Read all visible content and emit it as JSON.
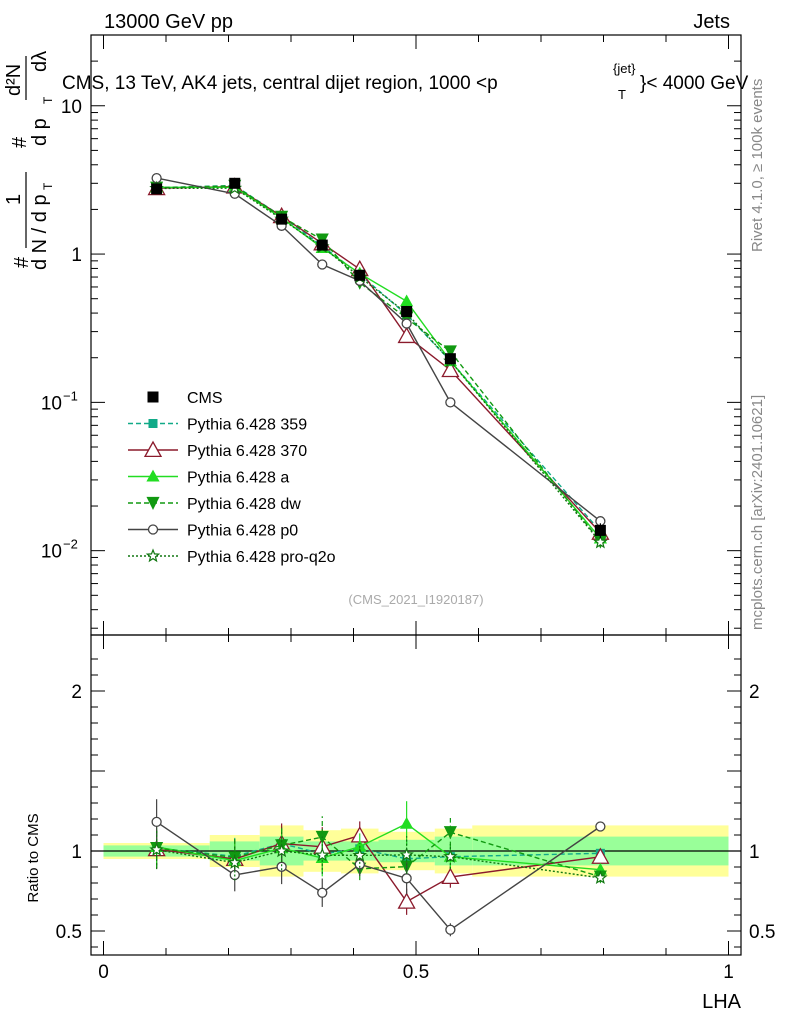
{
  "header": {
    "left_title": "13000 GeV pp",
    "right_title": "Jets",
    "plot_title_prefix": "CMS, 13 TeV, AK4 jets, central dijet region, 1000 <p",
    "plot_title_sup": "{jet}",
    "plot_title_sub": "T",
    "plot_title_suffix": "}< 4000 GeV",
    "rivet_label": "Rivet 4.1.0, ≥ 100k events",
    "mcplots_label": "mcplots.cern.ch [arXiv:2401.10621]",
    "analysis_id": "(CMS_2021_I1920187)"
  },
  "axes": {
    "xlabel": "LHA",
    "ratio_ylabel": "Ratio to CMS",
    "ylabel_parts": [
      "#",
      "1",
      "d N / d p",
      "T",
      "#",
      "d p",
      "T",
      "d²N",
      "dλ"
    ],
    "main_yticks": [
      {
        "value": 10,
        "base": "10"
      },
      {
        "value": 1,
        "base": "1"
      },
      {
        "value": 0.1,
        "base": "10",
        "exp": "−1"
      },
      {
        "value": 0.01,
        "base": "10",
        "exp": "−2"
      }
    ],
    "ratio_yticks": [
      {
        "value": 2,
        "label": "2"
      },
      {
        "value": 1,
        "label": "1"
      },
      {
        "value": 0.5,
        "label": "0.5"
      }
    ],
    "xticks": [
      {
        "value": 0,
        "label": "0"
      },
      {
        "value": 0.5,
        "label": "0.5"
      },
      {
        "value": 1,
        "label": "1"
      }
    ]
  },
  "chart_data": {
    "type": "line",
    "title": "CMS, 13 TeV, AK4 jets, central dijet region, 1000 < pT < 4000 GeV",
    "xlabel": "LHA",
    "ylabel": "1/(dN/dpT) d2N/(dpT dlambda)",
    "yscale": "log",
    "xlim": [
      -0.02,
      1.02
    ],
    "ylim": [
      0.0027,
      30
    ],
    "ratio_ylim": [
      0.35,
      2.35
    ],
    "x": [
      0.085,
      0.21,
      0.285,
      0.35,
      0.41,
      0.485,
      0.555,
      0.795
    ],
    "bins": [
      [
        0,
        0.17
      ],
      [
        0.17,
        0.25
      ],
      [
        0.25,
        0.32
      ],
      [
        0.32,
        0.38
      ],
      [
        0.38,
        0.44
      ],
      [
        0.44,
        0.53
      ],
      [
        0.53,
        0.59
      ],
      [
        0.59,
        1.0
      ]
    ],
    "data": {
      "name": "CMS",
      "values": [
        2.75,
        3.0,
        1.72,
        1.15,
        0.72,
        0.41,
        0.197,
        0.0137
      ],
      "errors": [
        0.09,
        0.1,
        0.07,
        0.05,
        0.04,
        0.025,
        0.015,
        0.0016
      ],
      "band_inner": [
        0.035,
        0.06,
        0.09,
        0.06,
        0.06,
        0.07,
        0.09,
        0.09
      ],
      "band_outer": [
        0.05,
        0.1,
        0.16,
        0.13,
        0.14,
        0.12,
        0.14,
        0.16
      ]
    },
    "series": [
      {
        "name": "Pythia 6.428 359",
        "color": "#11aa88",
        "dash": "5,3",
        "marker": "square",
        "values": [
          2.8,
          2.9,
          1.8,
          1.13,
          0.73,
          0.39,
          0.19,
          0.0135
        ],
        "errors": [
          0.03,
          0.03,
          0.03,
          0.03,
          0.02,
          0.03,
          0.02,
          0.003
        ]
      },
      {
        "name": "Pythia 6.428 370",
        "color": "#8b1a2c",
        "dash": "",
        "marker": "triangle-open",
        "values": [
          2.78,
          2.85,
          1.8,
          1.18,
          0.79,
          0.28,
          0.165,
          0.0132
        ],
        "errors": [
          0.03,
          0.03,
          0.03,
          0.03,
          0.02,
          0.03,
          0.02,
          0.003
        ]
      },
      {
        "name": "Pythia 6.428 a",
        "color": "#22dd22",
        "dash": "",
        "marker": "triangle",
        "values": [
          2.82,
          2.82,
          1.75,
          1.1,
          0.74,
          0.48,
          0.19,
          0.0121
        ],
        "errors": [
          0.03,
          0.03,
          0.03,
          0.03,
          0.02,
          0.03,
          0.02,
          0.003
        ]
      },
      {
        "name": "Pythia 6.428 dw",
        "color": "#119911",
        "dash": "5,3",
        "marker": "triangle-down",
        "values": [
          2.8,
          2.88,
          1.78,
          1.25,
          0.64,
          0.37,
          0.22,
          0.0115
        ],
        "errors": [
          0.03,
          0.03,
          0.03,
          0.03,
          0.02,
          0.03,
          0.02,
          0.003
        ]
      },
      {
        "name": "Pythia 6.428 p0",
        "color": "#444444",
        "dash": "",
        "marker": "circle-open",
        "values": [
          3.25,
          2.55,
          1.55,
          0.85,
          0.66,
          0.34,
          0.1,
          0.0158
        ],
        "errors": [
          0.03,
          0.03,
          0.03,
          0.03,
          0.02,
          0.03,
          0.02,
          0.003
        ]
      },
      {
        "name": "Pythia 6.428 pro-q2o",
        "color": "#117711",
        "dash": "2,2",
        "marker": "star-open",
        "values": [
          2.77,
          2.78,
          1.72,
          1.12,
          0.7,
          0.4,
          0.19,
          0.0114
        ],
        "errors": [
          0.03,
          0.03,
          0.03,
          0.03,
          0.02,
          0.03,
          0.02,
          0.003
        ]
      }
    ]
  }
}
